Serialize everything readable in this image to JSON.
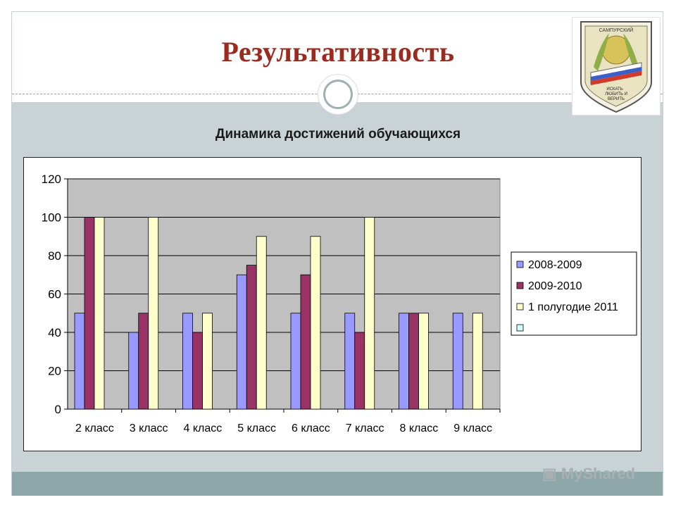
{
  "slide": {
    "title": "Результативность",
    "subtitle": "Динамика достижений обучающихся",
    "crest_motto": [
      "ИСКАТЬ",
      "ЛЮБИТЬ И",
      "ВЕРИТЬ"
    ],
    "crest_top_text": "САМПУРСКИЙ",
    "watermark": "MyShared"
  },
  "colors": {
    "title": "#9c2a1e",
    "background": "#c9d3d6",
    "bottom_band": "#8ea8aa",
    "plot_area": "#c0c0c0"
  },
  "chart_data": {
    "type": "bar",
    "categories": [
      "2 класс",
      "3 класс",
      "4 класс",
      "5 класс",
      "6 класс",
      "7 класс",
      "8 класс",
      "9 класс"
    ],
    "series": [
      {
        "name": "2008-2009",
        "color": "#9999ff",
        "values": [
          50,
          40,
          50,
          70,
          50,
          50,
          50,
          50
        ]
      },
      {
        "name": "2009-2010",
        "color": "#993366",
        "values": [
          100,
          50,
          40,
          75,
          70,
          40,
          50,
          0
        ]
      },
      {
        "name": "1 полугодие 2011",
        "color": "#ffffcc",
        "values": [
          100,
          100,
          50,
          90,
          90,
          100,
          50,
          50
        ]
      },
      {
        "name": "",
        "color": "#ccffff",
        "values": [
          0,
          0,
          0,
          0,
          0,
          0,
          0,
          0
        ]
      }
    ],
    "yticks": [
      "0",
      "20",
      "40",
      "60",
      "80",
      "100",
      "120"
    ],
    "ylim": [
      0,
      120
    ],
    "grid": true,
    "legend": "right"
  }
}
